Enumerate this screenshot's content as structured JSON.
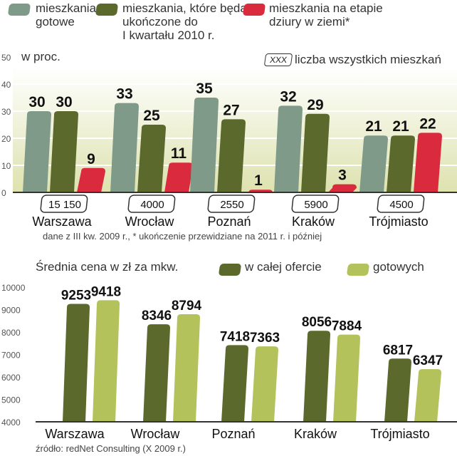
{
  "colors": {
    "gotowe": "#7f9a88",
    "ukonczone": "#5b6a2c",
    "dziury": "#d92a3e",
    "cala_oferta": "#5b6a2c",
    "gotowych": "#b3c25a"
  },
  "legend_top": [
    {
      "lines": [
        "mieszkania",
        "gotowe"
      ]
    },
    {
      "lines": [
        "mieszkania, które będą",
        "ukończone do",
        "I kwartału 2010 r."
      ]
    },
    {
      "lines": [
        "mieszkania na etapie",
        "dziury w ziemi*"
      ]
    }
  ],
  "unit_top": "w proc.",
  "box_legend": {
    "box": "XXX",
    "label": "liczba wszystkich mieszkań"
  },
  "note": "dane z III kw.  2009 r., * ukończenie przewidziane na 2011 r. i później",
  "bottom_title": "Średnia cena w zł za mkw.",
  "legend_bottom": [
    "w całej ofercie",
    "gotowych"
  ],
  "source": "źródło: redNet Consulting (X 2009 r.)",
  "chart_data": [
    {
      "type": "bar",
      "title": "w proc.",
      "categories": [
        "Warszawa",
        "Wrocław",
        "Poznań",
        "Kraków",
        "Trójmiasto"
      ],
      "series": [
        {
          "name": "mieszkania gotowe",
          "values": [
            30,
            33,
            35,
            32,
            21
          ]
        },
        {
          "name": "mieszkania, które będą ukończone do I kwartału 2010 r.",
          "values": [
            30,
            25,
            27,
            29,
            21
          ]
        },
        {
          "name": "mieszkania na etapie dziury w ziemi*",
          "values": [
            9,
            11,
            1,
            3,
            22
          ]
        }
      ],
      "totals": [
        "15 150",
        "4000",
        "2550",
        "5900",
        "4500"
      ],
      "yticks": [
        0,
        10,
        20,
        30,
        40,
        50
      ],
      "ylim": [
        0,
        50
      ],
      "grid": true
    },
    {
      "type": "bar",
      "title": "Średnia cena w zł za mkw.",
      "categories": [
        "Warszawa",
        "Wrocław",
        "Poznań",
        "Kraków",
        "Trójmiasto"
      ],
      "series": [
        {
          "name": "w całej ofercie",
          "values": [
            9253,
            8346,
            7418,
            8056,
            6817
          ]
        },
        {
          "name": "gotowych",
          "values": [
            9418,
            8794,
            7363,
            7884,
            6347
          ]
        }
      ],
      "yticks": [
        4000,
        5000,
        6000,
        7000,
        8000,
        9000,
        10000
      ],
      "ylim": [
        4000,
        10000
      ],
      "grid": false
    }
  ]
}
